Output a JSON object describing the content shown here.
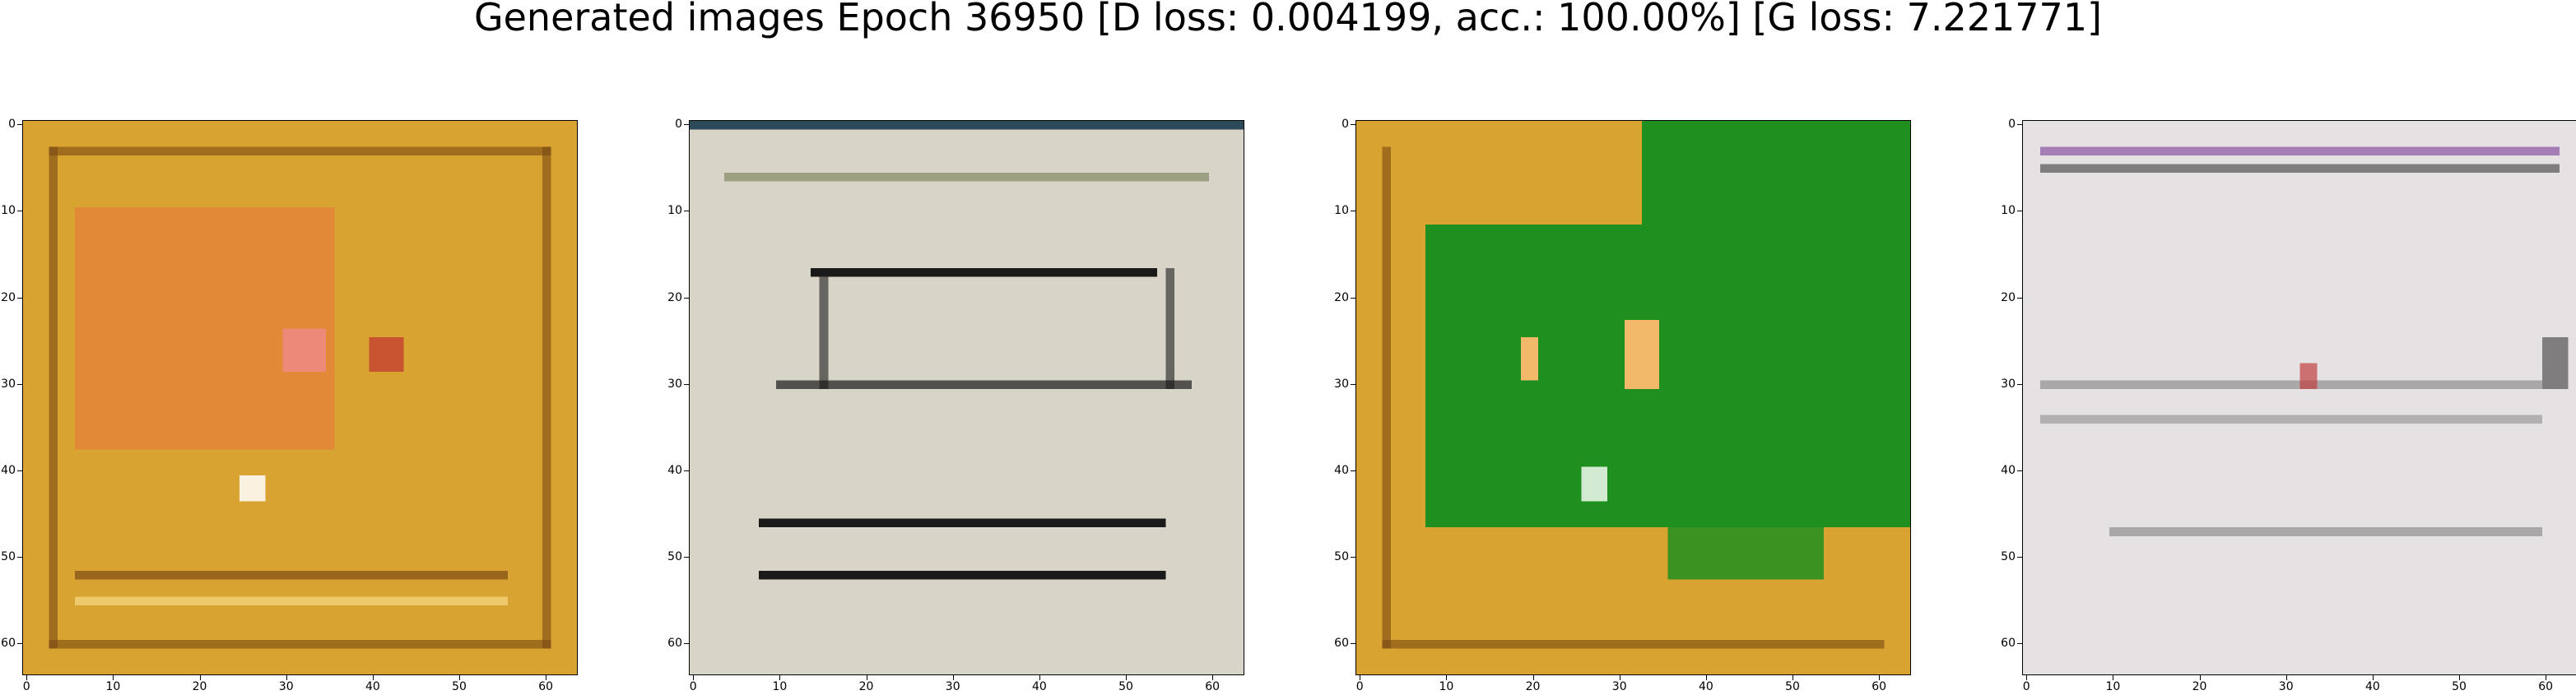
{
  "figure": {
    "title": "Generated images Epoch 36950 [D loss: 0.004199, acc.: 100.00%] [G loss: 7.221771]"
  },
  "axes": {
    "tick_values": [
      0,
      10,
      20,
      30,
      40,
      50,
      60
    ],
    "x_tick_labels": [
      "0",
      "10",
      "20",
      "30",
      "40",
      "50",
      "60"
    ],
    "y_tick_labels": [
      "0",
      "10",
      "20",
      "30",
      "40",
      "50",
      "60"
    ],
    "image_size": 64
  },
  "images": [
    {
      "name": "generated-image-1",
      "palette": {
        "base": "#d9a332",
        "accent": "#e8743a",
        "dark": "#7a4a12",
        "light": "#f3d27a"
      }
    },
    {
      "name": "generated-image-2",
      "palette": {
        "base": "#d9d4c8",
        "accent": "#1a1a1a",
        "dark": "#5b6b3a",
        "light": "#f2eee8"
      }
    },
    {
      "name": "generated-image-3",
      "palette": {
        "base": "#d9a332",
        "accent": "#1f8f1f",
        "dark": "#7a4a12",
        "light": "#f3b96a"
      }
    },
    {
      "name": "generated-image-4",
      "palette": {
        "base": "#e6e2e4",
        "accent": "#7a3a9a",
        "dark": "#3a3a3a",
        "light": "#f7f5f6"
      }
    }
  ]
}
